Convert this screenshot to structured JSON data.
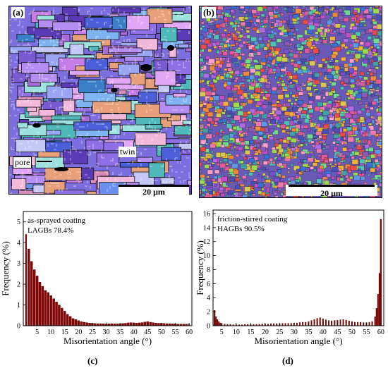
{
  "figure": {
    "panels": {
      "a": {
        "label": "(a)",
        "annotations": {
          "pore": "pore",
          "twin": "twin"
        },
        "scale_bar": "20 μm",
        "palette": [
          "#8f6fe6",
          "#6b8ff0",
          "#b48ef2",
          "#4a5fd8",
          "#c77de8",
          "#9aa6f5",
          "#5a3bb5",
          "#e1a6f5",
          "#3b7fc9",
          "#a86bd9",
          "#7fb4f2",
          "#f2b8d9",
          "#4fb8b8",
          "#e8a07a",
          "#9ce0e0",
          "#d98bb5",
          "#7a5ad1",
          "#c4c8f7"
        ]
      },
      "b": {
        "label": "(b)",
        "scale_bar": "20 μm",
        "palette": [
          "#e05a9a",
          "#3b6fd9",
          "#7a4fd1",
          "#f08a3a",
          "#4fc2b8",
          "#c24fc9",
          "#f2b03a",
          "#5a9ae8",
          "#9fd94f",
          "#e84a4a",
          "#6fd98f",
          "#b06ae8",
          "#f07ab0",
          "#3fa0a8",
          "#d9c84f",
          "#8a5ab8",
          "#ff9ec8",
          "#4a4fb8"
        ]
      }
    },
    "chart_data": [
      {
        "type": "bar",
        "panel_label": "(c)",
        "annotation": "as-sprayed coating",
        "stat": "LAGBs 78.4%",
        "xlabel": "Misorientation angle (°)",
        "ylabel": "Frequency (%)",
        "xlim": [
          0,
          61
        ],
        "ylim": [
          0,
          5.5
        ],
        "xticks": [
          5,
          10,
          15,
          20,
          25,
          30,
          35,
          40,
          45,
          50,
          55,
          60
        ],
        "yticks": [
          0,
          1,
          2,
          3,
          4,
          5
        ],
        "bar_color": "#8b0000",
        "x": [
          1,
          2,
          3,
          4,
          5,
          6,
          7,
          8,
          9,
          10,
          11,
          12,
          13,
          14,
          15,
          16,
          17,
          18,
          19,
          20,
          21,
          22,
          23,
          24,
          25,
          26,
          27,
          28,
          29,
          30,
          31,
          32,
          33,
          34,
          35,
          36,
          37,
          38,
          39,
          40,
          41,
          42,
          43,
          44,
          45,
          46,
          47,
          48,
          49,
          50,
          51,
          52,
          53,
          54,
          55,
          56,
          57,
          58,
          59,
          60
        ],
        "values": [
          4.4,
          3.7,
          3.1,
          2.7,
          2.4,
          2.1,
          1.9,
          1.7,
          1.6,
          1.45,
          1.3,
          1.15,
          1.0,
          0.85,
          0.7,
          0.55,
          0.45,
          0.35,
          0.3,
          0.25,
          0.2,
          0.17,
          0.15,
          0.13,
          0.12,
          0.11,
          0.1,
          0.1,
          0.1,
          0.09,
          0.09,
          0.1,
          0.09,
          0.09,
          0.1,
          0.11,
          0.12,
          0.14,
          0.15,
          0.14,
          0.13,
          0.14,
          0.15,
          0.18,
          0.2,
          0.17,
          0.15,
          0.13,
          0.12,
          0.12,
          0.11,
          0.1,
          0.1,
          0.09,
          0.09,
          0.08,
          0.08,
          0.08,
          0.08,
          0.07
        ]
      },
      {
        "type": "bar",
        "panel_label": "(d)",
        "annotation": "friction-stirred coating",
        "stat": "HAGBs 90.5%",
        "xlabel": "Misorientation angle (°)",
        "ylabel": "Frequency (%)",
        "xlim": [
          2,
          61
        ],
        "ylim": [
          0,
          16.5
        ],
        "xticks": [
          5,
          10,
          15,
          20,
          25,
          30,
          35,
          40,
          45,
          50,
          55,
          60
        ],
        "yticks": [
          0,
          2,
          4,
          6,
          8,
          10,
          12,
          14,
          16
        ],
        "bar_color": "#8b0000",
        "x": [
          2.5,
          3,
          3.5,
          4,
          4.5,
          5,
          6,
          7,
          8,
          9,
          10,
          11,
          12,
          13,
          14,
          15,
          16,
          17,
          18,
          19,
          20,
          21,
          22,
          23,
          24,
          25,
          26,
          27,
          28,
          29,
          30,
          31,
          32,
          33,
          34,
          35,
          36,
          37,
          38,
          39,
          40,
          41,
          42,
          43,
          44,
          45,
          46,
          47,
          48,
          49,
          50,
          51,
          52,
          53,
          54,
          55,
          56,
          57,
          58,
          58.5,
          59,
          59.5,
          60
        ],
        "values": [
          2.2,
          1.3,
          0.9,
          0.6,
          0.4,
          0.3,
          0.25,
          0.2,
          0.2,
          0.15,
          0.15,
          0.15,
          0.15,
          0.2,
          0.2,
          0.2,
          0.2,
          0.2,
          0.2,
          0.25,
          0.25,
          0.25,
          0.3,
          0.3,
          0.3,
          0.3,
          0.35,
          0.35,
          0.35,
          0.35,
          0.4,
          0.4,
          0.45,
          0.5,
          0.5,
          0.6,
          0.75,
          0.9,
          1.05,
          1.15,
          1.0,
          0.85,
          0.75,
          0.7,
          0.75,
          0.8,
          0.85,
          0.9,
          0.8,
          0.7,
          0.6,
          0.5,
          0.5,
          0.5,
          0.45,
          0.45,
          0.5,
          0.6,
          1.3,
          2.5,
          4.5,
          7.5,
          15.2
        ]
      }
    ],
    "captions": {
      "c": "(c)",
      "d": "(d)"
    }
  }
}
